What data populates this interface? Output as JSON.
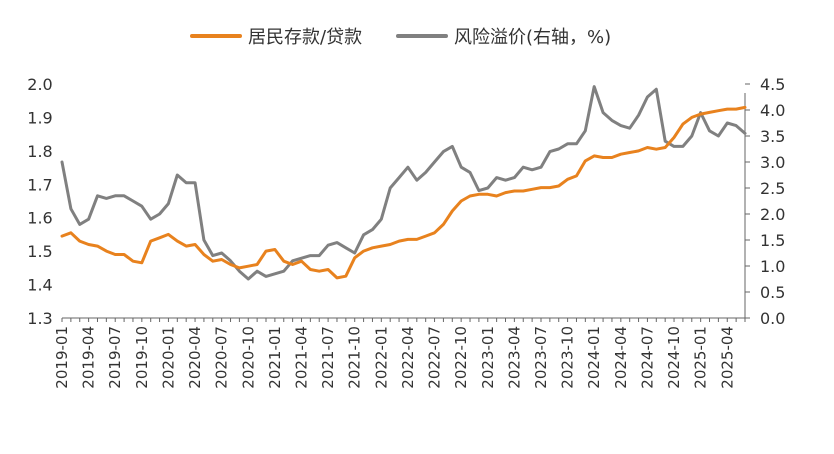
{
  "chart_data": {
    "type": "line",
    "title": "",
    "xlabel": "",
    "ylabel": "",
    "legend_position": "top",
    "grid": false,
    "x": [
      "2019-01",
      "2019-02",
      "2019-03",
      "2019-04",
      "2019-05",
      "2019-06",
      "2019-07",
      "2019-08",
      "2019-09",
      "2019-10",
      "2019-11",
      "2019-12",
      "2020-01",
      "2020-02",
      "2020-03",
      "2020-04",
      "2020-05",
      "2020-06",
      "2020-07",
      "2020-08",
      "2020-09",
      "2020-10",
      "2020-11",
      "2020-12",
      "2021-01",
      "2021-02",
      "2021-03",
      "2021-04",
      "2021-05",
      "2021-06",
      "2021-07",
      "2021-08",
      "2021-09",
      "2021-10",
      "2021-11",
      "2021-12",
      "2022-01",
      "2022-02",
      "2022-03",
      "2022-04",
      "2022-05",
      "2022-06",
      "2022-07",
      "2022-08",
      "2022-09",
      "2022-10",
      "2022-11",
      "2022-12",
      "2023-01",
      "2023-02",
      "2023-03",
      "2023-04",
      "2023-05",
      "2023-06",
      "2023-07",
      "2023-08",
      "2023-09",
      "2023-10",
      "2023-11",
      "2023-12",
      "2024-01",
      "2024-02",
      "2024-03",
      "2024-04",
      "2024-05",
      "2024-06",
      "2024-07",
      "2024-08",
      "2024-09",
      "2024-10",
      "2024-11",
      "2024-12",
      "2025-01",
      "2025-02",
      "2025-03",
      "2025-04",
      "2025-05",
      "2025-06"
    ],
    "x_tick_labels": [
      "2019-01",
      "2019-04",
      "2019-07",
      "2019-10",
      "2020-01",
      "2020-04",
      "2020-07",
      "2020-10",
      "2021-01",
      "2021-04",
      "2021-07",
      "2021-10",
      "2022-01",
      "2022-04",
      "2022-07",
      "2022-10",
      "2023-01",
      "2023-04",
      "2023-07",
      "2023-10",
      "2024-01",
      "2024-04",
      "2024-07",
      "2024-10",
      "2025-01",
      "2025-04"
    ],
    "y_left": {
      "min": 1.3,
      "max": 2.0,
      "ticks": [
        "1.3",
        "1.4",
        "1.5",
        "1.6",
        "1.7",
        "1.8",
        "1.9",
        "2.0"
      ]
    },
    "y_right": {
      "min": 0.0,
      "max": 4.5,
      "ticks": [
        "0.0",
        "0.5",
        "1.0",
        "1.5",
        "2.0",
        "2.5",
        "3.0",
        "3.5",
        "4.0",
        "4.5"
      ]
    },
    "series": [
      {
        "name": "居民存款/贷款",
        "axis": "left",
        "color": "#E8821E",
        "values": [
          1.545,
          1.555,
          1.53,
          1.52,
          1.515,
          1.5,
          1.49,
          1.49,
          1.47,
          1.465,
          1.53,
          1.54,
          1.55,
          1.53,
          1.515,
          1.52,
          1.49,
          1.47,
          1.475,
          1.46,
          1.45,
          1.455,
          1.46,
          1.5,
          1.505,
          1.47,
          1.46,
          1.47,
          1.445,
          1.44,
          1.445,
          1.42,
          1.425,
          1.48,
          1.5,
          1.51,
          1.515,
          1.52,
          1.53,
          1.535,
          1.535,
          1.545,
          1.555,
          1.58,
          1.62,
          1.65,
          1.665,
          1.67,
          1.67,
          1.665,
          1.675,
          1.68,
          1.68,
          1.685,
          1.69,
          1.69,
          1.695,
          1.715,
          1.725,
          1.77,
          1.785,
          1.78,
          1.78,
          1.79,
          1.795,
          1.8,
          1.81,
          1.805,
          1.81,
          1.84,
          1.88,
          1.9,
          1.91,
          1.915,
          1.92,
          1.925,
          1.925,
          1.93
        ]
      },
      {
        "name": "风险溢价(右轴，%)",
        "axis": "right",
        "color": "#808080",
        "values": [
          3.0,
          2.1,
          1.8,
          1.9,
          2.35,
          2.3,
          2.35,
          2.35,
          2.25,
          2.15,
          1.9,
          2.0,
          2.2,
          2.75,
          2.6,
          2.6,
          1.5,
          1.2,
          1.25,
          1.1,
          0.9,
          0.75,
          0.9,
          0.8,
          0.85,
          0.9,
          1.1,
          1.15,
          1.2,
          1.2,
          1.4,
          1.45,
          1.35,
          1.25,
          1.6,
          1.7,
          1.9,
          2.5,
          2.7,
          2.9,
          2.65,
          2.8,
          3.0,
          3.2,
          3.3,
          2.9,
          2.8,
          2.45,
          2.5,
          2.7,
          2.65,
          2.7,
          2.9,
          2.85,
          2.9,
          3.2,
          3.25,
          3.35,
          3.35,
          3.6,
          4.45,
          3.95,
          3.8,
          3.7,
          3.65,
          3.9,
          4.25,
          4.4,
          3.4,
          3.3,
          3.3,
          3.5,
          3.95,
          3.6,
          3.5,
          3.75,
          3.7,
          3.55
        ]
      }
    ]
  }
}
